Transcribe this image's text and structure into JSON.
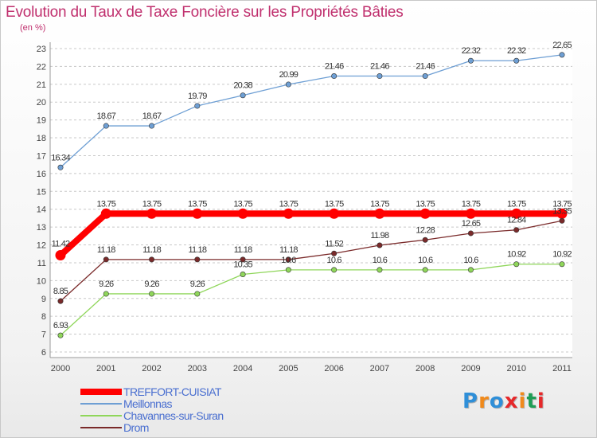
{
  "header": {
    "title": "Evolution du Taux de Taxe Foncière sur les Propriétés Bâties",
    "subtitle": "(en %)"
  },
  "chart_data": {
    "type": "line",
    "title": "Evolution du Taux de Taxe Foncière sur les Propriétés Bâties",
    "ylabel": "(en %)",
    "xlabel": "",
    "ylim": [
      6,
      23
    ],
    "yticks": [
      "6",
      "7",
      "8",
      "9",
      "10",
      "11",
      "12",
      "13",
      "14",
      "15",
      "16",
      "17",
      "18",
      "19",
      "20",
      "21",
      "22",
      "23"
    ],
    "grid": "horizontal-dashed",
    "categories": [
      "2000",
      "2001",
      "2002",
      "2003",
      "2004",
      "2005",
      "2006",
      "2007",
      "2008",
      "2009",
      "2010",
      "2011"
    ],
    "series": [
      {
        "name": "TREFFORT-CUISIAT",
        "color": "#ff0000",
        "values": [
          11.42,
          13.75,
          13.75,
          13.75,
          13.75,
          13.75,
          13.75,
          13.75,
          13.75,
          13.75,
          13.75,
          13.75
        ],
        "labels": [
          "11.42",
          "13.75",
          "13.75",
          "13.75",
          "13.75",
          "13.75",
          "13.75",
          "13.75",
          "13.75",
          "13.75",
          "13.75",
          "13.75"
        ]
      },
      {
        "name": "Meillonnas",
        "color": "#6e9fd4",
        "values": [
          16.34,
          18.67,
          18.67,
          19.79,
          20.38,
          20.99,
          21.46,
          21.46,
          21.46,
          22.32,
          22.32,
          22.65
        ],
        "labels": [
          "16.34",
          "18.67",
          "18.67",
          "19.79",
          "20.38",
          "20.99",
          "21.46",
          "21.46",
          "21.46",
          "22.32",
          "22.32",
          "22.65"
        ]
      },
      {
        "name": "Chavannes-sur-Suran",
        "color": "#8fd65a",
        "values": [
          6.93,
          9.26,
          9.26,
          9.26,
          10.35,
          10.6,
          10.6,
          10.6,
          10.6,
          10.6,
          10.92,
          10.92
        ],
        "labels": [
          "6.93",
          "9.26",
          "9.26",
          "9.26",
          "10.35",
          "10.6",
          "10.6",
          "10.6",
          "10.6",
          "10.6",
          "10.92",
          "10.92"
        ]
      },
      {
        "name": "Drom",
        "color": "#7a2a2a",
        "values": [
          8.85,
          11.18,
          11.18,
          11.18,
          11.18,
          11.18,
          11.52,
          11.98,
          12.28,
          12.65,
          12.84,
          13.35
        ],
        "labels": [
          "8.85",
          "11.18",
          "11.18",
          "11.18",
          "11.18",
          "11.18",
          "11.52",
          "11.98",
          "12.28",
          "12.65",
          "12.84",
          "13.35"
        ]
      }
    ],
    "legend": "bottom-left"
  },
  "logo": {
    "text": "Proxiti",
    "letters": [
      "P",
      "r",
      "o",
      "x",
      "i",
      "t",
      "i"
    ],
    "colors": [
      "#2f8fd8",
      "#f08a1c",
      "#2f8fd8",
      "#e6282a",
      "#f08a1c",
      "#1f9d55",
      "#e6282a"
    ]
  }
}
